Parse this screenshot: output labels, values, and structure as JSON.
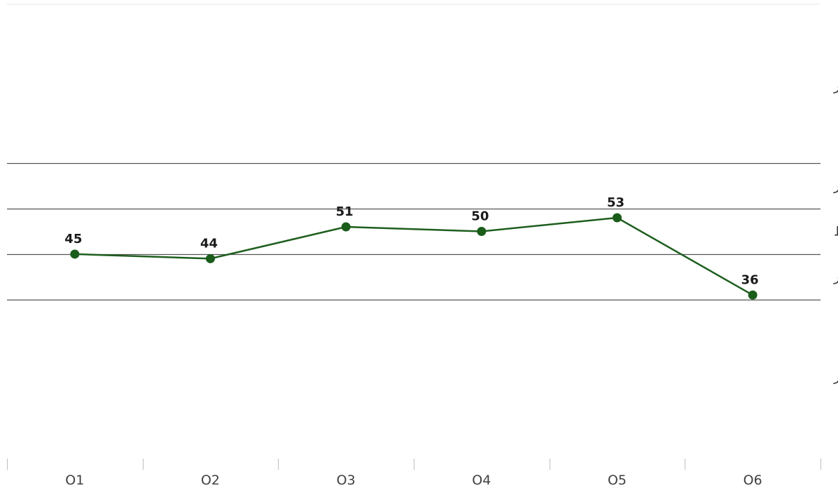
{
  "chart_data": {
    "type": "line",
    "categories": [
      "O1",
      "O2",
      "O3",
      "O4",
      "O5",
      "O6"
    ],
    "series": [
      {
        "values": [
          45,
          44,
          51,
          50,
          53,
          36
        ]
      }
    ],
    "data_labels": [
      "45",
      "44",
      "51",
      "50",
      "53",
      "36"
    ],
    "ylim": [
      0,
      100
    ],
    "reference_lines": [
      65,
      55,
      45,
      35
    ],
    "bands": [
      {
        "label": "خیلی انعطاف پذیر",
        "value": 82
      },
      {
        "label": "انعطاف پذیر",
        "value": 60
      },
      {
        "label": "متوسط",
        "value": 50
      },
      {
        "label": "انعطاف ناپذیر",
        "value": 40
      },
      {
        "label": "خیلی انعطاف ناپذیر",
        "value": 18
      }
    ],
    "line_color": "#1e5e1e",
    "marker_color": "#1a5c1a",
    "grid_color": "#555555",
    "legend": "none"
  }
}
